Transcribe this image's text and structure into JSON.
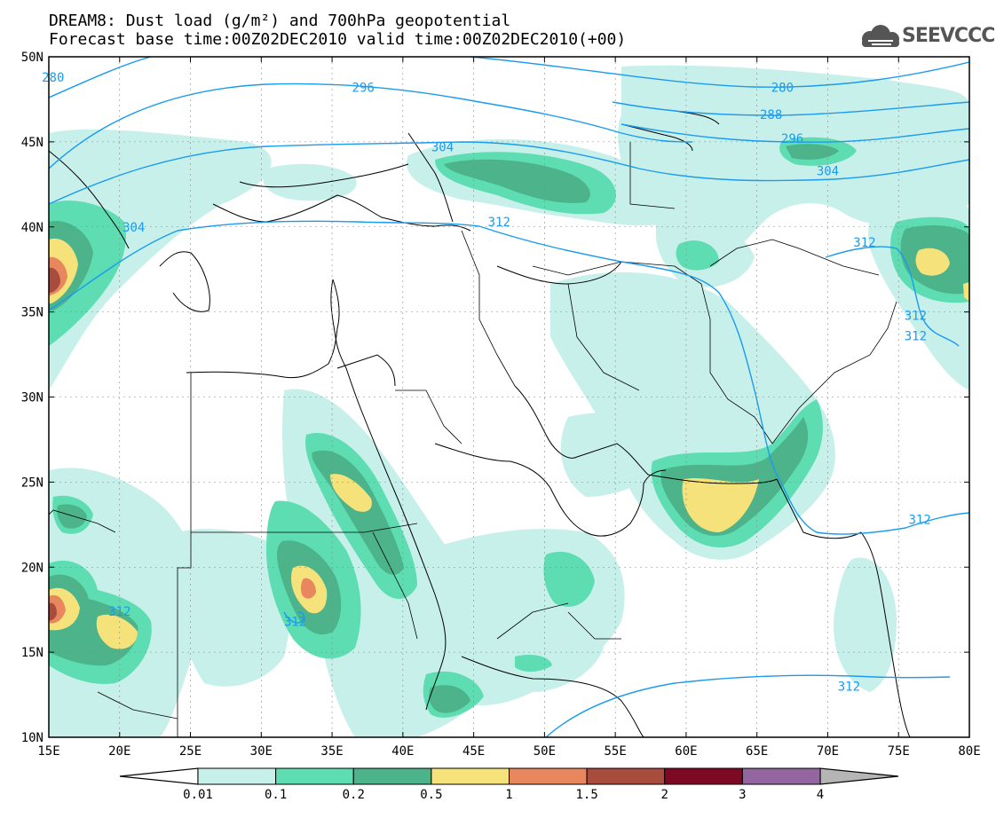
{
  "header": {
    "title": "DREAM8: Dust load (g/m²) and 700hPa geopotential",
    "subtitle": "Forecast base time:00Z02DEC2010 valid time:00Z02DEC2010(+00)",
    "logo_text": "SEEVCCC"
  },
  "map": {
    "lon_range": [
      15,
      80
    ],
    "lat_range": [
      10,
      50
    ],
    "lon_ticks": [
      {
        "value": 15,
        "label": "15E"
      },
      {
        "value": 20,
        "label": "20E"
      },
      {
        "value": 25,
        "label": "25E"
      },
      {
        "value": 30,
        "label": "30E"
      },
      {
        "value": 35,
        "label": "35E"
      },
      {
        "value": 40,
        "label": "40E"
      },
      {
        "value": 45,
        "label": "45E"
      },
      {
        "value": 50,
        "label": "50E"
      },
      {
        "value": 55,
        "label": "55E"
      },
      {
        "value": 60,
        "label": "60E"
      },
      {
        "value": 65,
        "label": "65E"
      },
      {
        "value": 70,
        "label": "70E"
      },
      {
        "value": 75,
        "label": "75E"
      },
      {
        "value": 80,
        "label": "80E"
      }
    ],
    "lat_ticks": [
      {
        "value": 10,
        "label": "10N"
      },
      {
        "value": 15,
        "label": "15N"
      },
      {
        "value": 20,
        "label": "20N"
      },
      {
        "value": 25,
        "label": "25N"
      },
      {
        "value": 30,
        "label": "30N"
      },
      {
        "value": 35,
        "label": "35N"
      },
      {
        "value": 40,
        "label": "40N"
      },
      {
        "value": 45,
        "label": "45N"
      },
      {
        "value": 50,
        "label": "50N"
      }
    ],
    "grid": true,
    "colors": {
      "coastline": "#000000",
      "contour": "#1a9bf0",
      "grid": "#888888"
    },
    "geopotential_labels": [
      {
        "text": "280",
        "lon": 15.3,
        "lat": 48.8
      },
      {
        "text": "296",
        "lon": 37.2,
        "lat": 48.2
      },
      {
        "text": "280",
        "lon": 66.8,
        "lat": 48.2
      },
      {
        "text": "288",
        "lon": 66.0,
        "lat": 46.6
      },
      {
        "text": "296",
        "lon": 67.5,
        "lat": 45.2
      },
      {
        "text": "304",
        "lon": 42.8,
        "lat": 44.7
      },
      {
        "text": "304",
        "lon": 70.0,
        "lat": 43.3
      },
      {
        "text": "304",
        "lon": 21.0,
        "lat": 40.0
      },
      {
        "text": "312",
        "lon": 46.8,
        "lat": 40.3
      },
      {
        "text": "312",
        "lon": 72.6,
        "lat": 39.1
      },
      {
        "text": "312",
        "lon": 76.2,
        "lat": 34.8
      },
      {
        "text": "312",
        "lon": 76.2,
        "lat": 33.6
      },
      {
        "text": "312",
        "lon": 20.0,
        "lat": 17.4
      },
      {
        "text": "312",
        "lon": 32.4,
        "lat": 16.8
      },
      {
        "text": "312",
        "lon": 76.5,
        "lat": 22.8
      },
      {
        "text": "312",
        "lon": 71.5,
        "lat": 13.0
      }
    ]
  },
  "legend": {
    "labels": [
      "0.01",
      "0.1",
      "0.2",
      "0.5",
      "1",
      "1.5",
      "2",
      "3",
      "4"
    ],
    "colors": [
      "#c8f0ea",
      "#5edcb2",
      "#4cb38a",
      "#f5e27a",
      "#e8865e",
      "#a84d3e",
      "#7d0a25",
      "#9466a0"
    ]
  }
}
